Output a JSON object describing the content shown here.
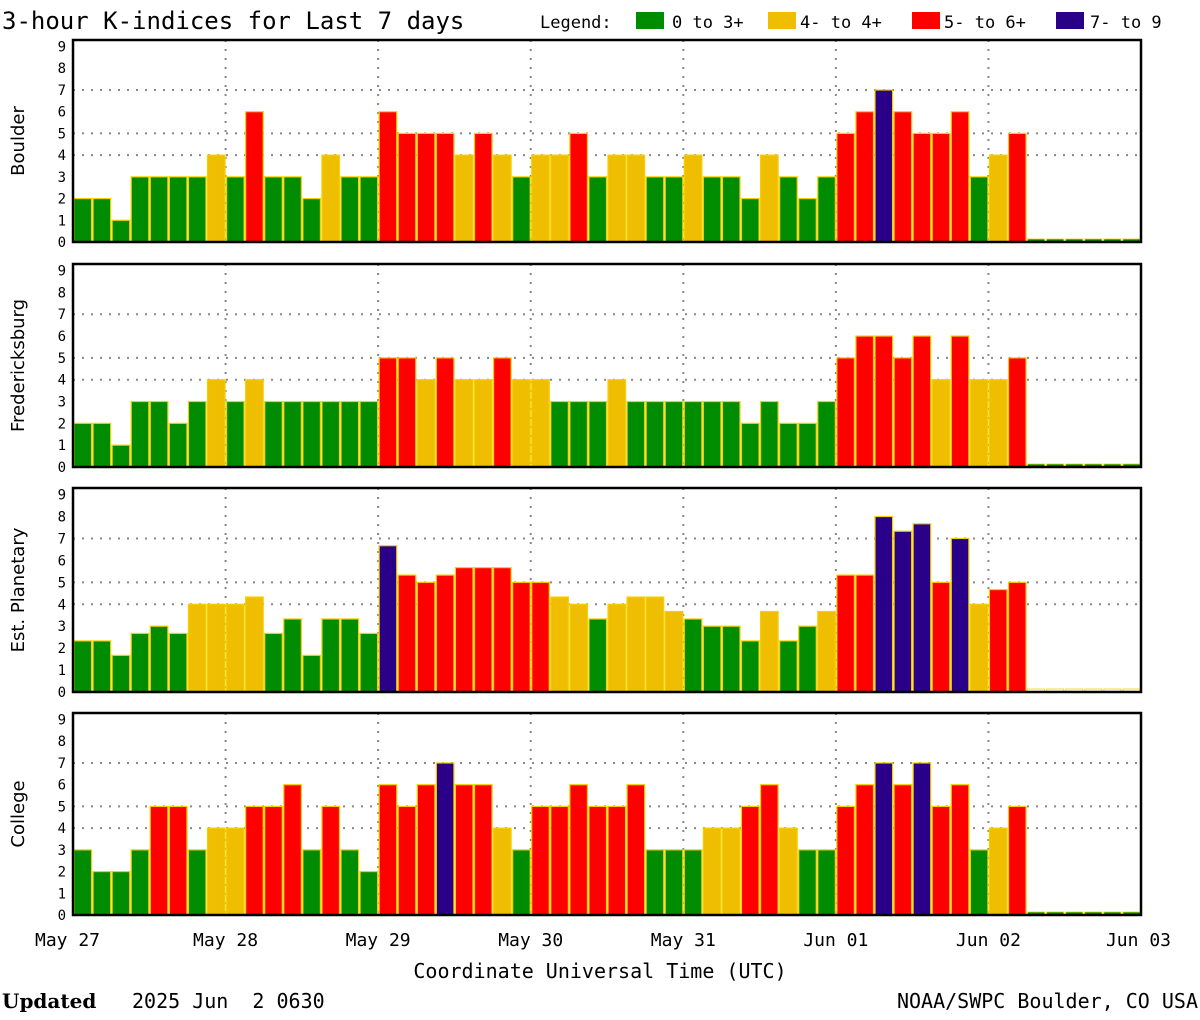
{
  "chart_data": {
    "type": "bar",
    "title": "3-hour K-indices for Last 7 days",
    "legend": {
      "label": "Legend:",
      "placement": "top-right",
      "items": [
        {
          "label": "0 to 3+",
          "color": "#008c00"
        },
        {
          "label": "4- to 4+",
          "color": "#f0be00"
        },
        {
          "label": "5- to 6+",
          "color": "#ff0000"
        },
        {
          "label": "7- to 9",
          "color": "#2a0088"
        }
      ]
    },
    "xlabel": "Coordinate Universal Time (UTC)",
    "x_ticks": [
      "May 27",
      "May 28",
      "May 29",
      "May 30",
      "May 31",
      "Jun 01",
      "Jun 02",
      "Jun 03"
    ],
    "y_ticks": [
      "0",
      "1",
      "2",
      "3",
      "4",
      "5",
      "6",
      "7",
      "8",
      "9"
    ],
    "ylim": [
      0,
      9
    ],
    "interval_hours": 3,
    "grid": true,
    "panels": [
      {
        "name": "Boulder",
        "values": [
          2,
          2,
          1,
          3,
          3,
          3,
          3,
          4,
          3,
          6,
          3,
          3,
          2,
          4,
          3,
          3,
          6,
          5,
          5,
          5,
          4,
          5,
          4,
          3,
          4,
          4,
          5,
          3,
          4,
          4,
          3,
          3,
          4,
          3,
          3,
          2,
          4,
          3,
          2,
          3,
          5,
          6,
          7,
          6,
          5,
          5,
          6,
          3,
          4,
          5,
          null,
          null,
          null,
          null,
          null,
          null
        ]
      },
      {
        "name": "Fredericksburg",
        "values": [
          2,
          2,
          1,
          3,
          3,
          2,
          3,
          4,
          3,
          4,
          3,
          3,
          3,
          3,
          3,
          3,
          5,
          5,
          4,
          5,
          4,
          4,
          5,
          4,
          4,
          3,
          3,
          3,
          4,
          3,
          3,
          3,
          3,
          3,
          3,
          2,
          3,
          2,
          2,
          3,
          5,
          6,
          6,
          5,
          6,
          4,
          6,
          4,
          4,
          5,
          null,
          null,
          null,
          null,
          null,
          null
        ]
      },
      {
        "name": "Est. Planetary",
        "values": [
          2.33,
          2.33,
          1.67,
          2.67,
          3,
          2.67,
          4,
          4,
          4,
          4.33,
          2.67,
          3.33,
          1.67,
          3.33,
          3.33,
          2.67,
          6.67,
          5.33,
          5,
          5.33,
          5.67,
          5.67,
          5.67,
          5,
          5,
          4.33,
          4,
          3.33,
          4,
          4.33,
          4.33,
          3.67,
          3.33,
          3,
          3,
          2.33,
          3.67,
          2.33,
          3,
          3.67,
          5.33,
          5.33,
          8,
          7.33,
          7.67,
          5,
          7,
          4,
          4.67,
          5,
          null,
          null,
          null,
          null,
          null,
          null
        ]
      },
      {
        "name": "College",
        "values": [
          3,
          2,
          2,
          3,
          5,
          5,
          3,
          4,
          4,
          5,
          5,
          6,
          3,
          5,
          3,
          2,
          6,
          5,
          6,
          7,
          6,
          6,
          4,
          3,
          5,
          5,
          6,
          5,
          5,
          6,
          3,
          3,
          3,
          4,
          4,
          5,
          6,
          4,
          3,
          3,
          5,
          6,
          7,
          6,
          7,
          5,
          6,
          3,
          4,
          5,
          null,
          null,
          null,
          null,
          null,
          null
        ]
      }
    ]
  },
  "footer": {
    "updated_label": "Updated",
    "updated_value": "2025 Jun  2 0630",
    "credit": "NOAA/SWPC Boulder, CO USA"
  }
}
